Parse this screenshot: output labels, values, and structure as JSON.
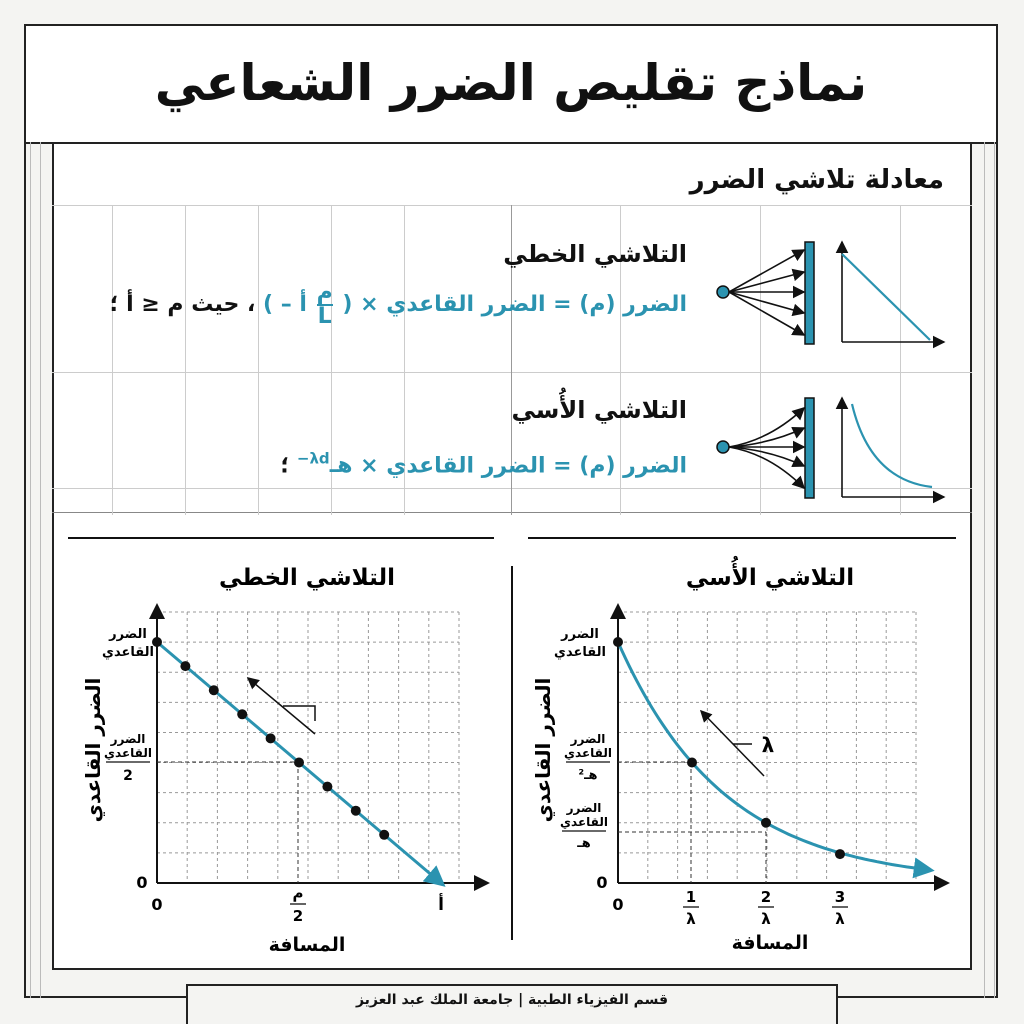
{
  "title": "نماذج تقليص الضرر الشعاعي",
  "equations_section": {
    "heading": "معادلة تلاشي الضرر",
    "linear": {
      "heading": "التلاشي الخطي",
      "formula_main": "الضرر (م) = الضرر القاعدي × (",
      "formula_frac_num": "م",
      "formula_frac_den": "L",
      "formula_tail": "أ – ",
      "formula_close": ")",
      "condition": "، حيث م ≤ أ ؛"
    },
    "exponential": {
      "heading": "التلاشي الأُسي",
      "formula_main": "الضرر (م) = الضرر القاعدي ×",
      "formula_exp": "هـ",
      "formula_sup": "−λd",
      "formula_end": " ؛"
    }
  },
  "colors": {
    "accent": "#2b93b0",
    "ink": "#111111",
    "grid": "#cccccc"
  },
  "linear_chart": {
    "title": "التلاشي الخطي",
    "ylabel": "الضرر القاعدي",
    "xlabel": "المسافة",
    "y_top_label": [
      "الضرر",
      "القاعدي"
    ],
    "y_mid_label": [
      "الضرر",
      "القاعدي",
      "2"
    ],
    "y_zero": "0",
    "x_zero": "0",
    "x_mid_num": "م",
    "x_mid_den": "2",
    "x_end": "أ"
  },
  "exp_chart": {
    "title": "التلاشي الأُسي",
    "ylabel": "الضرر القاعدي",
    "xlabel": "المسافة",
    "y_top_label": [
      "الضرر",
      "القاعدي"
    ],
    "y_mid_label": [
      "الضرر",
      "القاعدي",
      "هـ²"
    ],
    "y_low_label": [
      "الضرر",
      "القاعدي",
      "هـ"
    ],
    "y_zero": "0",
    "x_zero": "0",
    "lambda": "λ",
    "x_ticks": [
      {
        "num": "1",
        "den": "λ"
      },
      {
        "num": "2",
        "den": "λ"
      },
      {
        "num": "3",
        "den": "λ"
      }
    ]
  },
  "chart_data": [
    {
      "type": "line",
      "title": "التلاشي الخطي",
      "xlabel": "المسافة",
      "ylabel": "الضرر القاعدي",
      "series": [
        {
          "x": [
            0,
            0.1,
            0.2,
            0.3,
            0.4,
            0.5,
            0.6,
            0.7,
            0.8,
            1.0
          ],
          "y": [
            1.0,
            0.9,
            0.8,
            0.7,
            0.6,
            0.5,
            0.4,
            0.3,
            0.2,
            0.0
          ]
        }
      ],
      "xlim": [
        0,
        1.1
      ],
      "ylim": [
        0,
        1.1
      ]
    },
    {
      "type": "line",
      "title": "التلاشي الأُسي",
      "xlabel": "المسافة",
      "ylabel": "الضرر القاعدي",
      "series": [
        {
          "x": [
            0,
            1,
            2,
            3
          ],
          "y": [
            1.0,
            0.5,
            0.25,
            0.12
          ]
        }
      ],
      "xlim": [
        0,
        4.4
      ],
      "ylim": [
        0,
        1.1
      ]
    }
  ],
  "footer": "قسم الفيزياء الطبية | جامعة الملك عبد العزيز"
}
